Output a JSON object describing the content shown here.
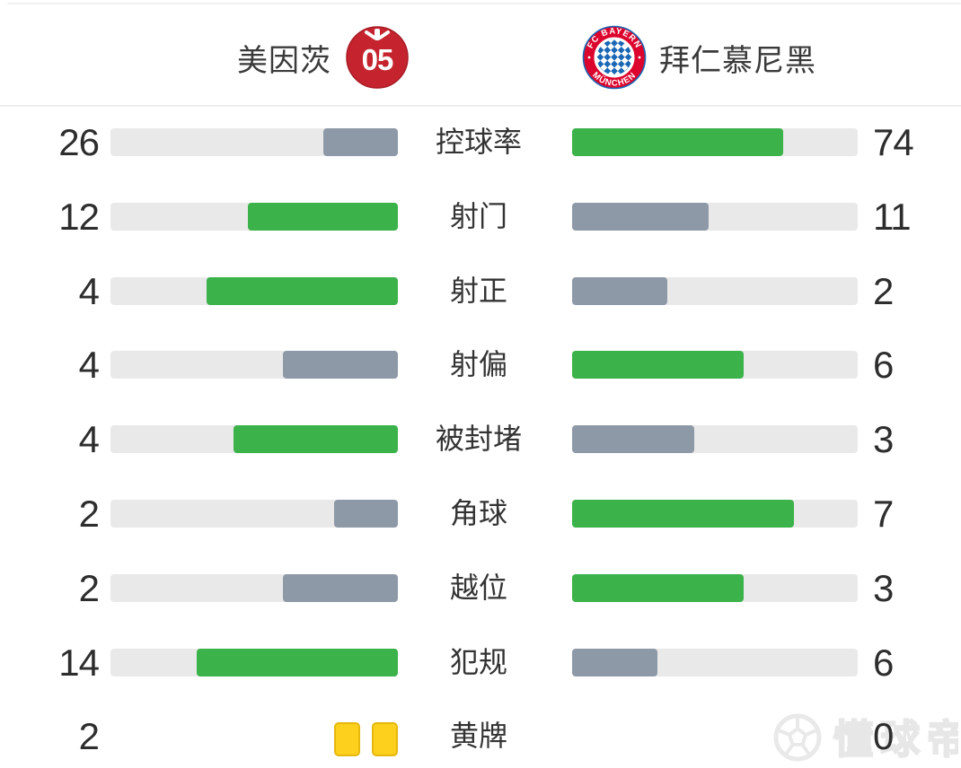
{
  "header": {
    "home": {
      "name": "美因茨",
      "badge_text": "05",
      "logo": "mainz-05-crest"
    },
    "away": {
      "name": "拜仁慕尼黑",
      "badge_top": "FC BAYERN",
      "badge_bottom": "MÜNCHEN",
      "logo": "fc-bayern-muenchen-crest"
    }
  },
  "stats": {
    "rows": [
      {
        "label": "控球率",
        "home": 26,
        "away": 74
      },
      {
        "label": "射门",
        "home": 12,
        "away": 11
      },
      {
        "label": "射正",
        "home": 4,
        "away": 2
      },
      {
        "label": "射偏",
        "home": 4,
        "away": 6
      },
      {
        "label": "被封堵",
        "home": 4,
        "away": 3
      },
      {
        "label": "角球",
        "home": 2,
        "away": 7
      },
      {
        "label": "越位",
        "home": 2,
        "away": 3
      },
      {
        "label": "犯规",
        "home": 14,
        "away": 6
      },
      {
        "label": "黄牌",
        "home": 2,
        "away": 0,
        "display": "cards"
      }
    ]
  },
  "watermark": {
    "text": "懂球帝",
    "icon": "football-icon"
  },
  "colors": {
    "win": "#3bb24a",
    "lose": "#8e99a8",
    "track": "#e9e9e9",
    "card": "#fcd01c",
    "card_border": "#e6b80e",
    "value_text": "#2d2d2d",
    "label_text": "#333333",
    "divider": "#ededed",
    "mainz_red": "#c5242e",
    "bayern_red": "#dc052d",
    "bayern_blue": "#1a67b5",
    "watermark_gray": "#e9e9e9"
  },
  "chart_data": {
    "type": "bar",
    "orientation": "horizontal",
    "layout": "mirrored-paired-bars, home bars grow right-to-left, away bars grow left-to-right",
    "categories": [
      "控球率",
      "射门",
      "射正",
      "射偏",
      "被封堵",
      "角球",
      "越位",
      "犯规",
      "黄牌"
    ],
    "series": [
      {
        "name": "美因茨",
        "values": [
          26,
          12,
          4,
          4,
          4,
          2,
          2,
          14,
          2
        ]
      },
      {
        "name": "拜仁慕尼黑",
        "values": [
          74,
          11,
          2,
          6,
          3,
          7,
          3,
          6,
          0
        ]
      }
    ],
    "bar_fill_rule": "fill width = value / (home + away) of track; higher value colored green (#3bb24a), lower slate gray (#8e99a8); 黄牌 row rendered as yellow card icons instead of bars",
    "axis": "none",
    "grid": false,
    "legend_position": "header-team-names"
  }
}
